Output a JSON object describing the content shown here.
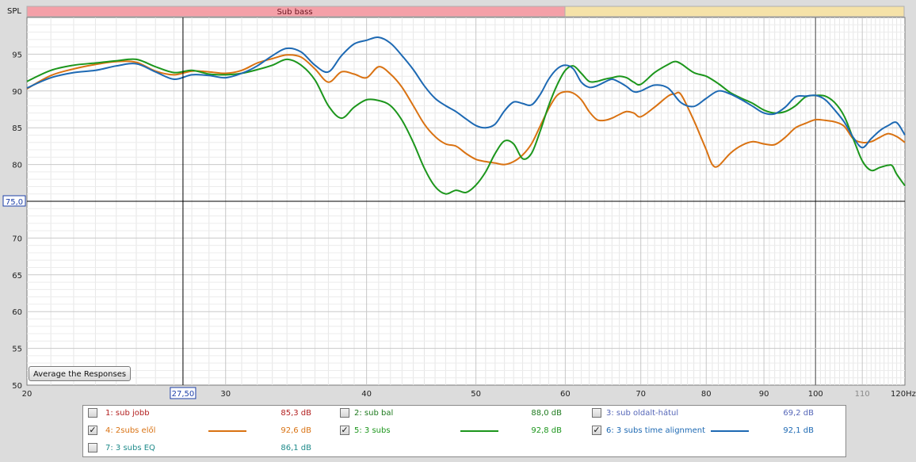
{
  "app": {
    "y_title": "SPL",
    "band_label": "Sub bass",
    "button_label": "Average the Responses",
    "cursor_x_readout": "27,50",
    "cursor_y_readout": "75,0"
  },
  "colors": {
    "background": "#dcdcdc",
    "plot": "#ffffff",
    "band_sub_bass": "#f4a0a8",
    "band_bass": "#f5e2a8",
    "grid": "#c8c8c8",
    "cursor": "#000000"
  },
  "legend": {
    "items": [
      {
        "label": "1: sub jobb",
        "value": "85,3 dB",
        "checked": false,
        "color": "#b21e1e"
      },
      {
        "label": "2: sub bal",
        "value": "88,0 dB",
        "checked": false,
        "color": "#1e7a1e"
      },
      {
        "label": "3: sub oldalt-hátul",
        "value": "69,2 dB",
        "checked": false,
        "color": "#5566b8"
      },
      {
        "label": "4: 2subs elől",
        "value": "92,6 dB",
        "checked": true,
        "color": "#d97212"
      },
      {
        "label": "5: 3 subs",
        "value": "92,8 dB",
        "checked": true,
        "color": "#1c961c"
      },
      {
        "label": "6: 3 subs time alignment",
        "value": "92,1 dB",
        "checked": true,
        "color": "#1d69b3"
      },
      {
        "label": "7: 3 subs EQ",
        "value": "86,1 dB",
        "checked": false,
        "color": "#1e8a8a"
      }
    ]
  },
  "chart_data": {
    "type": "line",
    "x_scale": "log",
    "xlim": [
      20,
      120
    ],
    "ylim": [
      50,
      100
    ],
    "y_ticks": [
      "50",
      "55",
      "60",
      "65",
      "70",
      "75",
      "80",
      "85",
      "90",
      "95"
    ],
    "x_ticks": [
      "20",
      "30",
      "40",
      "50",
      "60",
      "70",
      "80",
      "90",
      "100",
      "110",
      "120Hz"
    ],
    "x_tick_values": [
      20,
      30,
      40,
      50,
      60,
      70,
      80,
      90,
      100,
      110,
      120
    ],
    "cursor": {
      "x": 27.5,
      "y": 75
    },
    "series": [
      {
        "name": "4: 2subs elől",
        "color": "#d97212",
        "points": [
          [
            20,
            90.3
          ],
          [
            21,
            92.1
          ],
          [
            22,
            93.0
          ],
          [
            23,
            93.6
          ],
          [
            24,
            94.0
          ],
          [
            25,
            93.9
          ],
          [
            26,
            92.7
          ],
          [
            27,
            92.2
          ],
          [
            28,
            92.7
          ],
          [
            29,
            92.6
          ],
          [
            30,
            92.4
          ],
          [
            31,
            92.8
          ],
          [
            32,
            93.8
          ],
          [
            33,
            94.4
          ],
          [
            34,
            94.9
          ],
          [
            35,
            94.6
          ],
          [
            36,
            93.0
          ],
          [
            37,
            91.2
          ],
          [
            38,
            92.6
          ],
          [
            39,
            92.3
          ],
          [
            40,
            91.8
          ],
          [
            41,
            93.3
          ],
          [
            42,
            92.3
          ],
          [
            43,
            90.5
          ],
          [
            44,
            88.0
          ],
          [
            45,
            85.5
          ],
          [
            46,
            83.8
          ],
          [
            47,
            82.8
          ],
          [
            48,
            82.5
          ],
          [
            49,
            81.5
          ],
          [
            50,
            80.7
          ],
          [
            51,
            80.4
          ],
          [
            52,
            80.2
          ],
          [
            53,
            80.0
          ],
          [
            54,
            80.4
          ],
          [
            55,
            81.3
          ],
          [
            56,
            82.8
          ],
          [
            57,
            85.2
          ],
          [
            58,
            87.6
          ],
          [
            59,
            89.4
          ],
          [
            60,
            89.9
          ],
          [
            61,
            89.7
          ],
          [
            62,
            88.8
          ],
          [
            63,
            87.2
          ],
          [
            64,
            86.1
          ],
          [
            65,
            86.0
          ],
          [
            66,
            86.3
          ],
          [
            67,
            86.8
          ],
          [
            68,
            87.2
          ],
          [
            69,
            87.0
          ],
          [
            70,
            86.5
          ],
          [
            72,
            87.8
          ],
          [
            74,
            89.3
          ],
          [
            75,
            89.6
          ],
          [
            76,
            89.5
          ],
          [
            78,
            86.0
          ],
          [
            79,
            84.0
          ],
          [
            80,
            82.0
          ],
          [
            81,
            80.0
          ],
          [
            82,
            79.8
          ],
          [
            84,
            81.5
          ],
          [
            86,
            82.6
          ],
          [
            88,
            83.1
          ],
          [
            90,
            82.8
          ],
          [
            92,
            82.7
          ],
          [
            94,
            83.7
          ],
          [
            96,
            85.0
          ],
          [
            98,
            85.6
          ],
          [
            100,
            86.1
          ],
          [
            102,
            86.0
          ],
          [
            104,
            85.8
          ],
          [
            106,
            85.2
          ],
          [
            108,
            83.5
          ],
          [
            110,
            83.0
          ],
          [
            112,
            83.1
          ],
          [
            114,
            83.7
          ],
          [
            116,
            84.2
          ],
          [
            118,
            83.8
          ],
          [
            120,
            83.0
          ]
        ]
      },
      {
        "name": "5: 3 subs",
        "color": "#1c961c",
        "points": [
          [
            20,
            91.3
          ],
          [
            21,
            92.8
          ],
          [
            22,
            93.5
          ],
          [
            23,
            93.8
          ],
          [
            24,
            94.1
          ],
          [
            25,
            94.3
          ],
          [
            26,
            93.3
          ],
          [
            27,
            92.5
          ],
          [
            28,
            92.8
          ],
          [
            29,
            92.3
          ],
          [
            30,
            92.2
          ],
          [
            31,
            92.4
          ],
          [
            32,
            92.9
          ],
          [
            33,
            93.5
          ],
          [
            34,
            94.3
          ],
          [
            35,
            93.5
          ],
          [
            36,
            91.5
          ],
          [
            37,
            88.0
          ],
          [
            38,
            86.3
          ],
          [
            39,
            87.8
          ],
          [
            40,
            88.8
          ],
          [
            41,
            88.7
          ],
          [
            42,
            88.0
          ],
          [
            43,
            86.0
          ],
          [
            44,
            83.0
          ],
          [
            45,
            79.5
          ],
          [
            46,
            77.0
          ],
          [
            47,
            76.0
          ],
          [
            48,
            76.5
          ],
          [
            49,
            76.2
          ],
          [
            50,
            77.2
          ],
          [
            51,
            79.0
          ],
          [
            52,
            81.5
          ],
          [
            53,
            83.2
          ],
          [
            54,
            82.8
          ],
          [
            55,
            80.8
          ],
          [
            56,
            81.5
          ],
          [
            57,
            84.5
          ],
          [
            58,
            88.0
          ],
          [
            59,
            90.8
          ],
          [
            60,
            92.8
          ],
          [
            61,
            93.4
          ],
          [
            62,
            92.4
          ],
          [
            63,
            91.3
          ],
          [
            64,
            91.3
          ],
          [
            65,
            91.6
          ],
          [
            66,
            91.8
          ],
          [
            67,
            92.0
          ],
          [
            68,
            91.8
          ],
          [
            69,
            91.2
          ],
          [
            70,
            90.9
          ],
          [
            72,
            92.5
          ],
          [
            74,
            93.6
          ],
          [
            75,
            94.0
          ],
          [
            76,
            93.7
          ],
          [
            78,
            92.5
          ],
          [
            80,
            92.0
          ],
          [
            82,
            91.0
          ],
          [
            84,
            89.8
          ],
          [
            86,
            89.0
          ],
          [
            88,
            88.3
          ],
          [
            90,
            87.4
          ],
          [
            92,
            87.0
          ],
          [
            94,
            87.2
          ],
          [
            96,
            88.0
          ],
          [
            98,
            89.2
          ],
          [
            100,
            89.4
          ],
          [
            102,
            89.3
          ],
          [
            104,
            88.4
          ],
          [
            106,
            86.6
          ],
          [
            108,
            83.5
          ],
          [
            110,
            80.5
          ],
          [
            112,
            79.2
          ],
          [
            114,
            79.6
          ],
          [
            116,
            79.9
          ],
          [
            117,
            79.8
          ],
          [
            118,
            78.7
          ],
          [
            120,
            77.1
          ]
        ]
      },
      {
        "name": "6: 3 subs time alignment",
        "color": "#1d69b3",
        "points": [
          [
            20,
            90.4
          ],
          [
            21,
            91.8
          ],
          [
            22,
            92.5
          ],
          [
            23,
            92.8
          ],
          [
            24,
            93.4
          ],
          [
            25,
            93.7
          ],
          [
            26,
            92.6
          ],
          [
            27,
            91.6
          ],
          [
            28,
            92.2
          ],
          [
            29,
            92.1
          ],
          [
            30,
            91.8
          ],
          [
            31,
            92.4
          ],
          [
            32,
            93.4
          ],
          [
            33,
            94.8
          ],
          [
            34,
            95.8
          ],
          [
            35,
            95.3
          ],
          [
            36,
            93.5
          ],
          [
            37,
            92.6
          ],
          [
            38,
            94.8
          ],
          [
            39,
            96.4
          ],
          [
            40,
            96.9
          ],
          [
            41,
            97.3
          ],
          [
            42,
            96.5
          ],
          [
            43,
            94.8
          ],
          [
            44,
            92.9
          ],
          [
            45,
            90.7
          ],
          [
            46,
            89.0
          ],
          [
            47,
            88.0
          ],
          [
            48,
            87.2
          ],
          [
            49,
            86.2
          ],
          [
            50,
            85.3
          ],
          [
            51,
            85.0
          ],
          [
            52,
            85.5
          ],
          [
            53,
            87.3
          ],
          [
            54,
            88.5
          ],
          [
            55,
            88.3
          ],
          [
            56,
            88.1
          ],
          [
            57,
            89.5
          ],
          [
            58,
            91.6
          ],
          [
            59,
            93.0
          ],
          [
            60,
            93.5
          ],
          [
            61,
            93.0
          ],
          [
            62,
            91.2
          ],
          [
            63,
            90.5
          ],
          [
            64,
            90.7
          ],
          [
            65,
            91.2
          ],
          [
            66,
            91.6
          ],
          [
            67,
            91.2
          ],
          [
            68,
            90.6
          ],
          [
            69,
            89.9
          ],
          [
            70,
            90.0
          ],
          [
            72,
            90.8
          ],
          [
            74,
            90.4
          ],
          [
            76,
            88.4
          ],
          [
            78,
            87.9
          ],
          [
            80,
            89.0
          ],
          [
            82,
            90.0
          ],
          [
            84,
            89.6
          ],
          [
            86,
            88.8
          ],
          [
            88,
            87.9
          ],
          [
            90,
            87.0
          ],
          [
            92,
            86.9
          ],
          [
            94,
            87.8
          ],
          [
            96,
            89.2
          ],
          [
            98,
            89.3
          ],
          [
            100,
            89.4
          ],
          [
            102,
            88.8
          ],
          [
            104,
            87.4
          ],
          [
            106,
            85.8
          ],
          [
            108,
            83.7
          ],
          [
            110,
            82.3
          ],
          [
            112,
            83.5
          ],
          [
            114,
            84.6
          ],
          [
            116,
            85.3
          ],
          [
            118,
            85.7
          ],
          [
            120,
            84.0
          ]
        ]
      }
    ]
  }
}
